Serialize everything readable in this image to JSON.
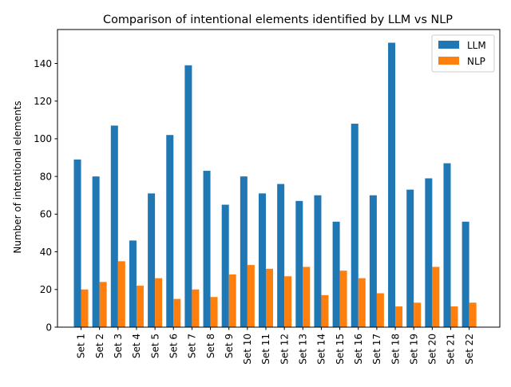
{
  "chart_data": {
    "type": "bar",
    "title": "Comparison of intentional elements identified by LLM vs NLP",
    "xlabel": "",
    "ylabel": "Number of intentional elements",
    "ylim": [
      0,
      158
    ],
    "yticks": [
      0,
      20,
      40,
      60,
      80,
      100,
      120,
      140
    ],
    "grid": false,
    "legend_position": "top-right",
    "categories": [
      "Set 1",
      "Set 2",
      "Set 3",
      "Set 4",
      "Set 5",
      "Set 6",
      "Set 7",
      "Set 8",
      "Set 9",
      "Set 10",
      "Set 11",
      "Set 12",
      "Set 13",
      "Set 14",
      "Set 15",
      "Set 16",
      "Set 17",
      "Set 18",
      "Set 19",
      "Set 20",
      "Set 21",
      "Set 22"
    ],
    "series": [
      {
        "name": "LLM",
        "color": "#1f77b4",
        "values": [
          89,
          80,
          107,
          46,
          71,
          102,
          139,
          83,
          65,
          80,
          71,
          76,
          67,
          70,
          56,
          108,
          70,
          151,
          73,
          79,
          87,
          56
        ]
      },
      {
        "name": "NLP",
        "color": "#ff7f0e",
        "values": [
          20,
          24,
          35,
          22,
          26,
          15,
          20,
          16,
          28,
          33,
          31,
          27,
          32,
          17,
          30,
          26,
          18,
          11,
          13,
          32,
          11,
          13
        ]
      }
    ]
  }
}
